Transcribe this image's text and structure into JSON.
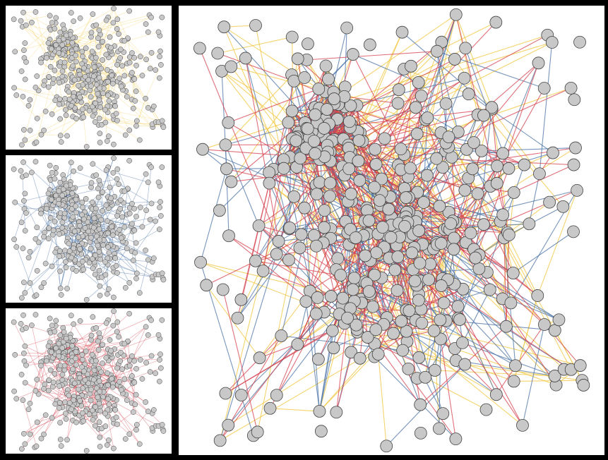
{
  "figure": {
    "layers": [
      {
        "key": "yellow",
        "color": "#f2c53d",
        "opacity": 0.35
      },
      {
        "key": "blue",
        "color": "#4a72a6",
        "opacity": 0.5
      },
      {
        "key": "red",
        "color": "#d6404e",
        "opacity": 0.45
      }
    ],
    "main_layer_opacity": 0.75,
    "node_fill": "#c8c8c8",
    "node_stroke": "#444444",
    "seed": 20240517
  }
}
